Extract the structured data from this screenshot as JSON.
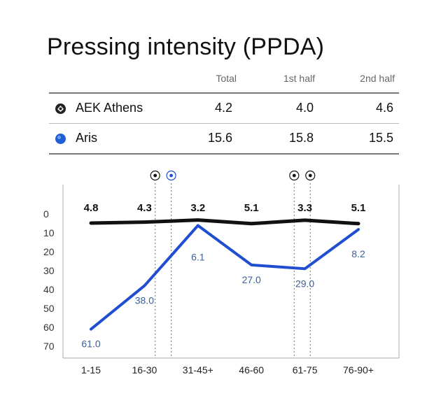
{
  "title": "Pressing intensity (PPDA)",
  "table": {
    "columns": [
      "Total",
      "1st half",
      "2nd half"
    ],
    "rows": [
      {
        "team": "AEK Athens",
        "icon": "aek-crest-icon",
        "total": "4.2",
        "first_half": "4.0",
        "second_half": "4.6"
      },
      {
        "team": "Aris",
        "icon": "blue-dot-icon",
        "color": "#1f5fd6",
        "total": "15.6",
        "first_half": "15.8",
        "second_half": "15.5"
      }
    ]
  },
  "chart_data": {
    "type": "line",
    "categories": [
      "1-15",
      "16-30",
      "31-45+",
      "46-60",
      "61-75",
      "76-90+"
    ],
    "y_ticks": [
      "0",
      "10",
      "20",
      "30",
      "40",
      "50",
      "60",
      "70"
    ],
    "ylim": [
      0,
      70
    ],
    "y_inverted": true,
    "series": [
      {
        "name": "AEK Athens",
        "color": "#111111",
        "values": [
          4.8,
          4.3,
          3.2,
          5.1,
          3.3,
          5.1
        ],
        "labels": [
          "4.8",
          "4.3",
          "3.2",
          "5.1",
          "3.3",
          "5.1"
        ]
      },
      {
        "name": "Aris",
        "color": "#1f4fd0",
        "values": [
          61.0,
          38.0,
          6.1,
          27.0,
          29.0,
          8.2
        ],
        "labels": [
          "61.0",
          "38.0",
          "6.1",
          "27.0",
          "29.0",
          "8.2"
        ]
      }
    ],
    "goal_markers": [
      {
        "minute_index": 2.4,
        "team": "AEK Athens"
      },
      {
        "minute_index": 3.0,
        "team": "Aris"
      },
      {
        "minute_index": 7.6,
        "team": "AEK Athens"
      },
      {
        "minute_index": 8.2,
        "team": "AEK Athens"
      }
    ],
    "grid": "vertical dotted"
  }
}
